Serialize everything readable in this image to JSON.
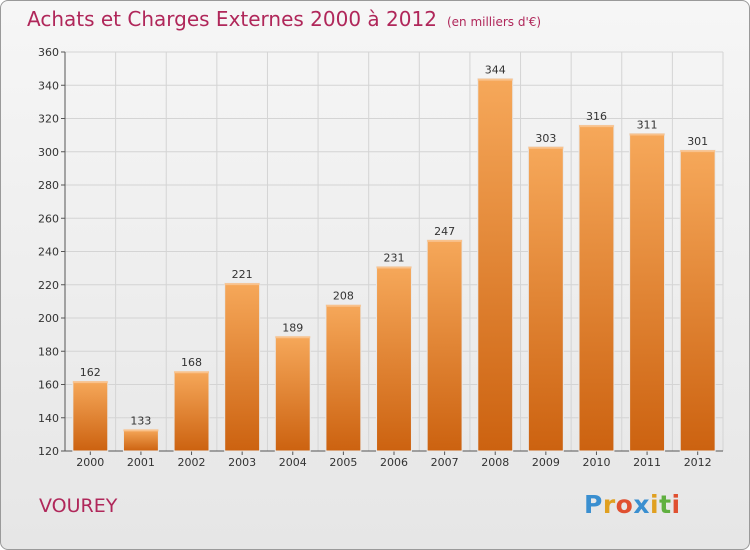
{
  "title": "Achats et Charges Externes 2000 à 2012",
  "unit_note": "(en milliers d'€)",
  "commune": "VOUREY",
  "logo": {
    "letters": [
      "P",
      "r",
      "o",
      "x",
      "i",
      "t",
      "i"
    ],
    "colors": [
      "#3a8fd0",
      "#e0a020",
      "#e05030",
      "#3a8fd0",
      "#e0a020",
      "#60b040",
      "#e05030"
    ]
  },
  "chart_data": {
    "type": "bar",
    "title": "Achats et Charges Externes 2000 à 2012",
    "subtitle": "(en milliers d'€)",
    "categories": [
      "2000",
      "2001",
      "2002",
      "2003",
      "2004",
      "2005",
      "2006",
      "2007",
      "2008",
      "2009",
      "2010",
      "2011",
      "2012"
    ],
    "values": [
      162,
      133,
      168,
      221,
      189,
      208,
      231,
      247,
      344,
      303,
      316,
      311,
      301
    ],
    "ylim": [
      120,
      360
    ],
    "yticks": [
      120,
      140,
      160,
      180,
      200,
      220,
      240,
      260,
      280,
      300,
      320,
      340,
      360
    ],
    "grid": true,
    "bar_color": "#f08a2c",
    "bar_color_dark": "#cc6210",
    "bar_color_light": "#f6a85a",
    "title_color": "#b0275a"
  }
}
